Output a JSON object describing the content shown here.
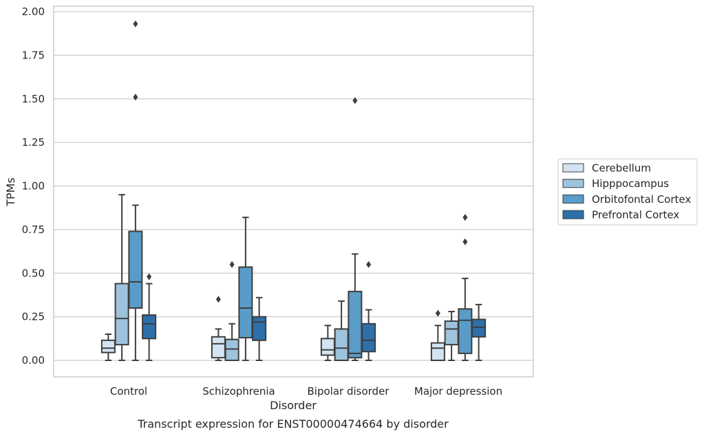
{
  "caption": "Transcript expression for ENST00000474664 by disorder",
  "chart_data": {
    "type": "box",
    "xlabel": "Disorder",
    "ylabel": "TPMs",
    "ylim": [
      -0.09,
      2.03
    ],
    "yticks": [
      0.0,
      0.25,
      0.5,
      0.75,
      1.0,
      1.25,
      1.5,
      1.75,
      2.0
    ],
    "ytick_labels": [
      "0.00",
      "0.25",
      "0.50",
      "0.75",
      "1.00",
      "1.25",
      "1.50",
      "1.75",
      "2.00"
    ],
    "grid": "horizontal",
    "legend_position": "right",
    "categories": [
      "Control",
      "Schizophrenia",
      "Bipolar disorder",
      "Major depression"
    ],
    "series": [
      {
        "name": "Cerebellum",
        "color": "#d4e3f2",
        "boxes": [
          {
            "whislo": 0.0,
            "q1": 0.045,
            "med": 0.07,
            "q3": 0.115,
            "whishi": 0.15,
            "fliers": []
          },
          {
            "whislo": 0.0,
            "q1": 0.015,
            "med": 0.095,
            "q3": 0.135,
            "whishi": 0.18,
            "fliers": [
              0.35
            ]
          },
          {
            "whislo": 0.0,
            "q1": 0.03,
            "med": 0.06,
            "q3": 0.125,
            "whishi": 0.2,
            "fliers": []
          },
          {
            "whislo": 0.0,
            "q1": 0.0,
            "med": 0.07,
            "q3": 0.1,
            "whishi": 0.2,
            "fliers": [
              0.27
            ]
          }
        ]
      },
      {
        "name": "Hipppocampus",
        "color": "#9dc3dd",
        "boxes": [
          {
            "whislo": 0.0,
            "q1": 0.09,
            "med": 0.24,
            "q3": 0.44,
            "whishi": 0.95,
            "fliers": []
          },
          {
            "whislo": 0.0,
            "q1": 0.0,
            "med": 0.065,
            "q3": 0.12,
            "whishi": 0.21,
            "fliers": [
              0.55
            ]
          },
          {
            "whislo": 0.0,
            "q1": 0.0,
            "med": 0.07,
            "q3": 0.18,
            "whishi": 0.34,
            "fliers": []
          },
          {
            "whislo": 0.0,
            "q1": 0.09,
            "med": 0.18,
            "q3": 0.225,
            "whishi": 0.28,
            "fliers": []
          }
        ]
      },
      {
        "name": "Orbitofontal Cortex",
        "color": "#5a9cc8",
        "boxes": [
          {
            "whislo": 0.0,
            "q1": 0.3,
            "med": 0.45,
            "q3": 0.74,
            "whishi": 0.89,
            "fliers": [
              1.51,
              1.93
            ]
          },
          {
            "whislo": 0.0,
            "q1": 0.13,
            "med": 0.3,
            "q3": 0.535,
            "whishi": 0.82,
            "fliers": []
          },
          {
            "whislo": 0.0,
            "q1": 0.015,
            "med": 0.04,
            "q3": 0.395,
            "whishi": 0.61,
            "fliers": [
              1.49
            ]
          },
          {
            "whislo": 0.0,
            "q1": 0.04,
            "med": 0.23,
            "q3": 0.295,
            "whishi": 0.47,
            "fliers": [
              0.68,
              0.82
            ]
          }
        ]
      },
      {
        "name": "Prefrontal Cortex",
        "color": "#2e6faa",
        "boxes": [
          {
            "whislo": 0.0,
            "q1": 0.125,
            "med": 0.21,
            "q3": 0.26,
            "whishi": 0.44,
            "fliers": [
              0.48
            ]
          },
          {
            "whislo": 0.0,
            "q1": 0.115,
            "med": 0.22,
            "q3": 0.25,
            "whishi": 0.36,
            "fliers": []
          },
          {
            "whislo": 0.0,
            "q1": 0.05,
            "med": 0.115,
            "q3": 0.21,
            "whishi": 0.29,
            "fliers": [
              0.55
            ]
          },
          {
            "whislo": 0.0,
            "q1": 0.135,
            "med": 0.19,
            "q3": 0.235,
            "whishi": 0.32,
            "fliers": []
          }
        ]
      }
    ]
  }
}
